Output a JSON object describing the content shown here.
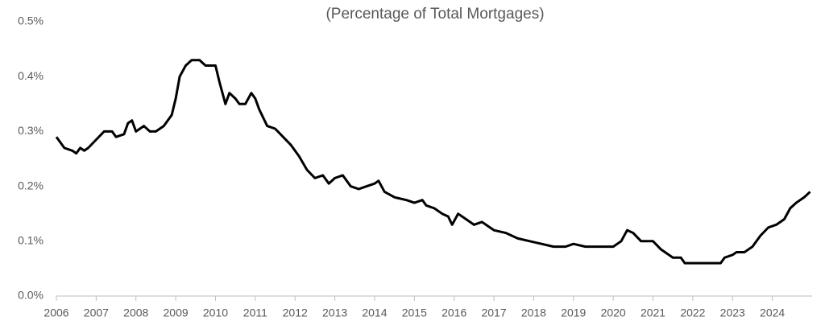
{
  "chart_data": {
    "type": "line",
    "title": "(Percentage of Total Mortgages)",
    "x": [
      2006.0,
      2006.2,
      2006.4,
      2006.5,
      2006.6,
      2006.7,
      2006.8,
      2007.0,
      2007.2,
      2007.4,
      2007.5,
      2007.7,
      2007.8,
      2007.9,
      2008.0,
      2008.2,
      2008.35,
      2008.5,
      2008.7,
      2008.9,
      2009.0,
      2009.1,
      2009.25,
      2009.4,
      2009.6,
      2009.75,
      2009.9,
      2010.0,
      2010.1,
      2010.25,
      2010.35,
      2010.5,
      2010.6,
      2010.75,
      2010.9,
      2011.0,
      2011.1,
      2011.3,
      2011.5,
      2011.7,
      2011.9,
      2012.1,
      2012.3,
      2012.5,
      2012.7,
      2012.85,
      2013.0,
      2013.2,
      2013.4,
      2013.6,
      2013.8,
      2014.0,
      2014.1,
      2014.25,
      2014.5,
      2014.8,
      2015.0,
      2015.2,
      2015.3,
      2015.5,
      2015.7,
      2015.85,
      2015.95,
      2016.1,
      2016.3,
      2016.5,
      2016.7,
      2016.9,
      2017.0,
      2017.3,
      2017.6,
      2017.9,
      2018.2,
      2018.5,
      2018.8,
      2019.0,
      2019.3,
      2019.6,
      2019.8,
      2020.0,
      2020.2,
      2020.35,
      2020.5,
      2020.7,
      2021.0,
      2021.2,
      2021.5,
      2021.7,
      2021.8,
      2022.5,
      2022.7,
      2022.8,
      2023.0,
      2023.1,
      2023.3,
      2023.5,
      2023.7,
      2023.9,
      2024.1,
      2024.3,
      2024.45,
      2024.6,
      2024.8,
      2024.95
    ],
    "series": [
      {
        "color": "#000000",
        "values": [
          0.29,
          0.27,
          0.265,
          0.26,
          0.27,
          0.265,
          0.27,
          0.285,
          0.3,
          0.3,
          0.29,
          0.295,
          0.315,
          0.32,
          0.3,
          0.31,
          0.3,
          0.3,
          0.31,
          0.33,
          0.36,
          0.4,
          0.42,
          0.43,
          0.43,
          0.42,
          0.42,
          0.42,
          0.39,
          0.35,
          0.37,
          0.36,
          0.35,
          0.35,
          0.37,
          0.36,
          0.34,
          0.31,
          0.305,
          0.29,
          0.275,
          0.255,
          0.23,
          0.215,
          0.22,
          0.205,
          0.215,
          0.22,
          0.2,
          0.195,
          0.2,
          0.205,
          0.21,
          0.19,
          0.18,
          0.175,
          0.17,
          0.175,
          0.165,
          0.16,
          0.15,
          0.145,
          0.13,
          0.15,
          0.14,
          0.13,
          0.135,
          0.125,
          0.12,
          0.115,
          0.105,
          0.1,
          0.095,
          0.09,
          0.09,
          0.095,
          0.09,
          0.09,
          0.09,
          0.09,
          0.1,
          0.12,
          0.115,
          0.1,
          0.1,
          0.085,
          0.07,
          0.07,
          0.06,
          0.06,
          0.06,
          0.07,
          0.075,
          0.08,
          0.08,
          0.09,
          0.11,
          0.125,
          0.13,
          0.14,
          0.16,
          0.17,
          0.18,
          0.19
        ]
      }
    ],
    "xlim": [
      2006,
      2025
    ],
    "xticks": [
      2006,
      2007,
      2008,
      2009,
      2010,
      2011,
      2012,
      2013,
      2014,
      2015,
      2016,
      2017,
      2018,
      2019,
      2020,
      2021,
      2022,
      2023,
      2024
    ],
    "ylim": [
      0,
      0.5
    ],
    "yticks": [
      {
        "value": 0,
        "label": "0.0%"
      },
      {
        "value": 0.1,
        "label": "0.1%"
      },
      {
        "value": 0.2,
        "label": "0.2%"
      },
      {
        "value": 0.3,
        "label": "0.3%"
      },
      {
        "value": 0.4,
        "label": "0.4%"
      },
      {
        "value": 0.5,
        "label": "0.5%"
      }
    ],
    "grid": false
  }
}
